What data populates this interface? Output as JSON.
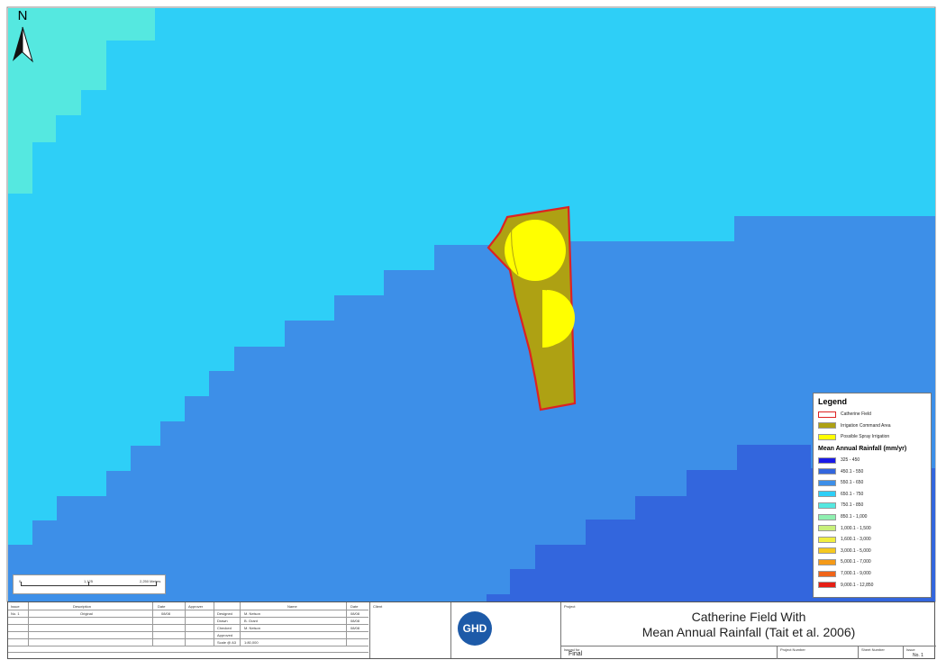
{
  "map": {
    "title_line1": "Catherine Field With",
    "title_line2": "Mean Annual Rainfall (Tait et al. 2006)",
    "north_label": "N",
    "colors": {
      "rain_650_750": "#2ecff7",
      "rain_550_650": "#3d8fe8",
      "rain_450_550": "#3366dd",
      "rain_750_850": "#55e8e0",
      "site_outline": "#dd2222",
      "command_area": "#aea113",
      "spray": "#ffff00"
    }
  },
  "legend": {
    "title": "Legend",
    "site_items": [
      {
        "label": "Catherine Field",
        "color": "#ffffff",
        "outline": "#dd2222",
        "icon": "outline-swatch"
      },
      {
        "label": "Irrigation Command Area",
        "color": "#aea113",
        "icon": "fill-swatch"
      },
      {
        "label": "Possible Spray Irrigation",
        "color": "#ffff00",
        "icon": "fill-swatch"
      }
    ],
    "rainfall_title": "Mean Annual Rainfall (mm/yr)",
    "rainfall_classes": [
      {
        "label": "325 - 450",
        "color": "#1a1ae6"
      },
      {
        "label": "450.1 - 550",
        "color": "#3366dd"
      },
      {
        "label": "550.1 - 650",
        "color": "#3d8fe8"
      },
      {
        "label": "650.1 - 750",
        "color": "#2ecff7"
      },
      {
        "label": "750.1 - 850",
        "color": "#55e8e0"
      },
      {
        "label": "850.1 - 1,000",
        "color": "#8ff0b0"
      },
      {
        "label": "1,000.1 - 1,500",
        "color": "#c8f07a"
      },
      {
        "label": "1,600.1 - 3,000",
        "color": "#f0ee40"
      },
      {
        "label": "3,000.1 - 5,000",
        "color": "#f5c820"
      },
      {
        "label": "5,000.1 - 7,000",
        "color": "#f59a18"
      },
      {
        "label": "7,000.1 - 9,000",
        "color": "#f06418"
      },
      {
        "label": "9,000.1 - 12,850",
        "color": "#e61e14"
      }
    ]
  },
  "scalebar": {
    "labels": [
      "0",
      "1,125",
      "2,250 Metres"
    ]
  },
  "titleblock": {
    "revision_headers": [
      "Issue",
      "Description",
      "Date",
      "Approver"
    ],
    "revision_row": [
      "No. 1",
      "Original",
      "08/08",
      ""
    ],
    "role_headers": [
      "",
      "Name",
      "Date"
    ],
    "roles": [
      {
        "role": "Designed",
        "name": "M. Nelson",
        "date": "08/08"
      },
      {
        "role": "Drawn",
        "name": "B. Grant",
        "date": "08/08"
      },
      {
        "role": "Checked",
        "name": "M. Nelson",
        "date": "08/08"
      },
      {
        "role": "Approved",
        "name": "",
        "date": ""
      },
      {
        "role": "Scale @ A3",
        "name": "1:80,000",
        "date": ""
      }
    ],
    "client_label": "Client",
    "company_logo": "GHD",
    "project_label": "Project",
    "issued_for_label": "Issued for",
    "issued_for_value": "Final",
    "project_number_label": "Project Number",
    "sheet_number_label": "Sheet Number",
    "issue_label": "Issue",
    "issue_value": "No. 1"
  }
}
